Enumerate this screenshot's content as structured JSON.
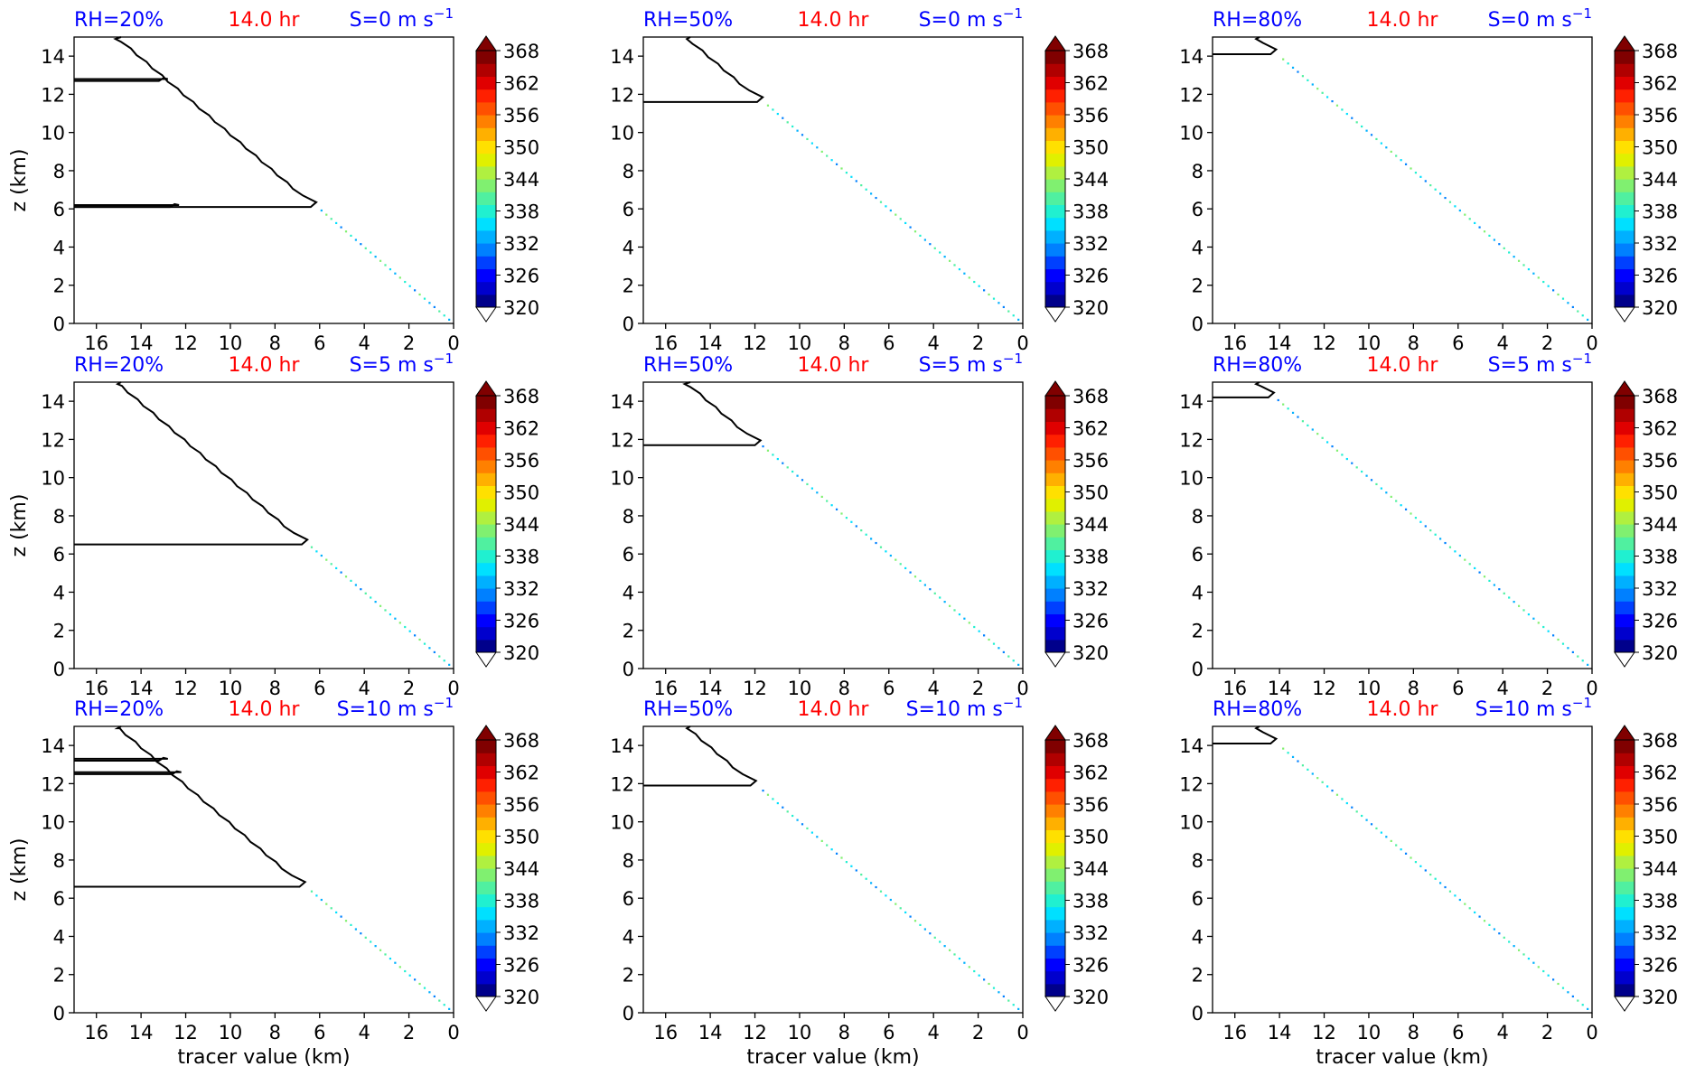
{
  "colors": {
    "title_left": "#0000ff",
    "title_center": "#ff0000",
    "title_right": "#0000ff",
    "contour": "#000000",
    "colorbar": [
      "#00008b",
      "#0000cd",
      "#0000ff",
      "#0040ff",
      "#0080ff",
      "#00b0ff",
      "#00e0ff",
      "#20f0d0",
      "#50f0a0",
      "#80f070",
      "#b0f040",
      "#e0f000",
      "#ffe000",
      "#ffb000",
      "#ff8000",
      "#ff5000",
      "#ff2000",
      "#e00000",
      "#b00000",
      "#800000"
    ]
  },
  "chart_data": [
    {
      "type": "contour",
      "title_left": "RH=20%",
      "title_center": "14.0 hr",
      "title_right": "S=0 m s",
      "title_right_sup": "−1",
      "ylabel": "z (km)",
      "xlabel": "",
      "xlim": [
        17,
        0
      ],
      "ylim": [
        0,
        15
      ],
      "xticks": [
        16,
        14,
        12,
        10,
        8,
        6,
        4,
        2,
        0
      ],
      "yticks": [
        0,
        2,
        4,
        6,
        8,
        10,
        12,
        14
      ],
      "colorbar_ticks": [
        368,
        362,
        356,
        350,
        344,
        338,
        332,
        326,
        320
      ],
      "contour_topz": 6.1,
      "contour_upper_segments": [
        {
          "z0": 12.7,
          "z1": 12.8,
          "xtip": 13.0,
          "ztip_top": 14.8
        },
        {
          "z0": 6.1,
          "z1": 6.2,
          "xtip": 12.5,
          "ztip_top": 12.6
        }
      ]
    },
    {
      "type": "contour",
      "title_left": "RH=50%",
      "title_center": "14.0 hr",
      "title_right": "S=0 m s",
      "title_right_sup": "−1",
      "ylabel": "",
      "xlabel": "",
      "xlim": [
        17,
        0
      ],
      "ylim": [
        0,
        15
      ],
      "xticks": [
        16,
        14,
        12,
        10,
        8,
        6,
        4,
        2,
        0
      ],
      "yticks": [
        0,
        2,
        4,
        6,
        8,
        10,
        12,
        14
      ],
      "colorbar_ticks": [
        368,
        362,
        356,
        350,
        344,
        338,
        332,
        326,
        320
      ],
      "contour_topz": 11.6,
      "contour_upper_segments": []
    },
    {
      "type": "contour",
      "title_left": "RH=80%",
      "title_center": "14.0 hr",
      "title_right": "S=0 m s",
      "title_right_sup": "−1",
      "ylabel": "",
      "xlabel": "",
      "xlim": [
        17,
        0
      ],
      "ylim": [
        0,
        15
      ],
      "xticks": [
        16,
        14,
        12,
        10,
        8,
        6,
        4,
        2,
        0
      ],
      "yticks": [
        0,
        2,
        4,
        6,
        8,
        10,
        12,
        14
      ],
      "colorbar_ticks": [
        368,
        362,
        356,
        350,
        344,
        338,
        332,
        326,
        320
      ],
      "contour_topz": 14.1,
      "contour_upper_segments": []
    },
    {
      "type": "contour",
      "title_left": "RH=20%",
      "title_center": "14.0 hr",
      "title_right": "S=5 m s",
      "title_right_sup": "−1",
      "ylabel": "z (km)",
      "xlabel": "",
      "xlim": [
        17,
        0
      ],
      "ylim": [
        0,
        15
      ],
      "xticks": [
        16,
        14,
        12,
        10,
        8,
        6,
        4,
        2,
        0
      ],
      "yticks": [
        0,
        2,
        4,
        6,
        8,
        10,
        12,
        14
      ],
      "colorbar_ticks": [
        368,
        362,
        356,
        350,
        344,
        338,
        332,
        326,
        320
      ],
      "contour_topz": 6.5,
      "contour_upper_segments": []
    },
    {
      "type": "contour",
      "title_left": "RH=50%",
      "title_center": "14.0 hr",
      "title_right": "S=5 m s",
      "title_right_sup": "−1",
      "ylabel": "",
      "xlabel": "",
      "xlim": [
        17,
        0
      ],
      "ylim": [
        0,
        15
      ],
      "xticks": [
        16,
        14,
        12,
        10,
        8,
        6,
        4,
        2,
        0
      ],
      "yticks": [
        0,
        2,
        4,
        6,
        8,
        10,
        12,
        14
      ],
      "colorbar_ticks": [
        368,
        362,
        356,
        350,
        344,
        338,
        332,
        326,
        320
      ],
      "contour_topz": 11.7,
      "contour_upper_segments": []
    },
    {
      "type": "contour",
      "title_left": "RH=80%",
      "title_center": "14.0 hr",
      "title_right": "S=5 m s",
      "title_right_sup": "−1",
      "ylabel": "",
      "xlabel": "",
      "xlim": [
        17,
        0
      ],
      "ylim": [
        0,
        15
      ],
      "xticks": [
        16,
        14,
        12,
        10,
        8,
        6,
        4,
        2,
        0
      ],
      "yticks": [
        0,
        2,
        4,
        6,
        8,
        10,
        12,
        14
      ],
      "colorbar_ticks": [
        368,
        362,
        356,
        350,
        344,
        338,
        332,
        326,
        320
      ],
      "contour_topz": 14.2,
      "contour_upper_segments": []
    },
    {
      "type": "contour",
      "title_left": "RH=20%",
      "title_center": "14.0 hr",
      "title_right": "S=10 m s",
      "title_right_sup": "−1",
      "ylabel": "z (km)",
      "xlabel": "tracer value (km)",
      "xlim": [
        17,
        0
      ],
      "ylim": [
        0,
        15
      ],
      "xticks": [
        16,
        14,
        12,
        10,
        8,
        6,
        4,
        2,
        0
      ],
      "yticks": [
        0,
        2,
        4,
        6,
        8,
        10,
        12,
        14
      ],
      "colorbar_ticks": [
        368,
        362,
        356,
        350,
        344,
        338,
        332,
        326,
        320
      ],
      "contour_topz": 6.6,
      "contour_upper_segments": [
        {
          "z0": 13.2,
          "z1": 13.3,
          "xtip": 13.0,
          "ztip_top": 14.8
        },
        {
          "z0": 12.5,
          "z1": 12.6,
          "xtip": 12.4,
          "ztip_top": 12.7
        }
      ]
    },
    {
      "type": "contour",
      "title_left": "RH=50%",
      "title_center": "14.0 hr",
      "title_right": "S=10 m s",
      "title_right_sup": "−1",
      "ylabel": "",
      "xlabel": "tracer value (km)",
      "xlim": [
        17,
        0
      ],
      "ylim": [
        0,
        15
      ],
      "xticks": [
        16,
        14,
        12,
        10,
        8,
        6,
        4,
        2,
        0
      ],
      "yticks": [
        0,
        2,
        4,
        6,
        8,
        10,
        12,
        14
      ],
      "colorbar_ticks": [
        368,
        362,
        356,
        350,
        344,
        338,
        332,
        326,
        320
      ],
      "contour_topz": 11.9,
      "contour_upper_segments": []
    },
    {
      "type": "contour",
      "title_left": "RH=80%",
      "title_center": "14.0 hr",
      "title_right": "S=10 m s",
      "title_right_sup": "−1",
      "ylabel": "",
      "xlabel": "tracer value (km)",
      "xlim": [
        17,
        0
      ],
      "ylim": [
        0,
        15
      ],
      "xticks": [
        16,
        14,
        12,
        10,
        8,
        6,
        4,
        2,
        0
      ],
      "yticks": [
        0,
        2,
        4,
        6,
        8,
        10,
        12,
        14
      ],
      "colorbar_ticks": [
        368,
        362,
        356,
        350,
        344,
        338,
        332,
        326,
        320
      ],
      "contour_topz": 14.1,
      "contour_upper_segments": []
    }
  ]
}
